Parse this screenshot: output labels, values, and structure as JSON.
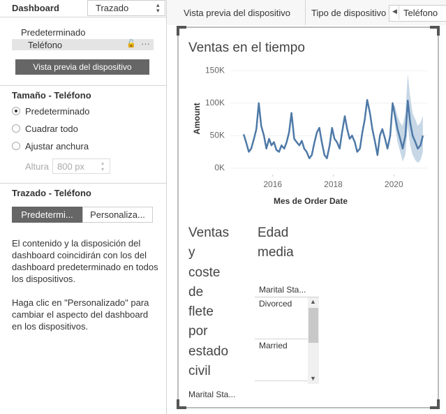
{
  "sidebar": {
    "tabs": [
      "Dashboard",
      "Trazado"
    ],
    "device_list": [
      "Predeterminado",
      "Teléfono"
    ],
    "preview_button": "Vista previa del dispositivo",
    "size": {
      "title": "Tamaño - Teléfono",
      "options": [
        "Predeterminado",
        "Cuadrar todo",
        "Ajustar anchura"
      ],
      "height_label": "Altura",
      "height_value": "800 px"
    },
    "layout": {
      "title": "Trazado - Teléfono",
      "buttons": [
        "Predetermi...",
        "Personaliza..."
      ],
      "paragraphs": [
        "El contenido y la disposición del dashboard coincidirán con los del dashboard predeterminado en todos los dispositivos.",
        "Haga clic en \"Personalizado\" para cambiar el aspecto del dashboard en los dispositivos."
      ]
    }
  },
  "toolbar": {
    "preview_tab": "Vista previa del dispositivo",
    "device_type_label": "Tipo de dispositivo",
    "device_type_value": "Teléfono"
  },
  "dashboard": {
    "chart_data": {
      "type": "line",
      "title": "Ventas en el tiempo",
      "y_label": "Amount",
      "x_label": "Mes de Order Date",
      "x": [
        2015.04,
        2015.12,
        2015.21,
        2015.29,
        2015.38,
        2015.46,
        2015.54,
        2015.62,
        2015.71,
        2015.79,
        2015.88,
        2015.96,
        2016.04,
        2016.12,
        2016.21,
        2016.29,
        2016.38,
        2016.46,
        2016.54,
        2016.62,
        2016.71,
        2016.79,
        2016.88,
        2016.96,
        2017.04,
        2017.12,
        2017.21,
        2017.29,
        2017.38,
        2017.46,
        2017.54,
        2017.62,
        2017.71,
        2017.79,
        2017.88,
        2017.96,
        2018.04,
        2018.12,
        2018.21,
        2018.29,
        2018.38,
        2018.46,
        2018.54,
        2018.62,
        2018.71,
        2018.79,
        2018.88,
        2018.96,
        2019.04,
        2019.12,
        2019.21,
        2019.29,
        2019.38,
        2019.46,
        2019.54,
        2019.62,
        2019.71,
        2019.79,
        2019.88,
        2019.96,
        2020.04,
        2020.12,
        2020.21,
        2020.29,
        2020.38,
        2020.46,
        2020.54,
        2020.62,
        2020.71,
        2020.79,
        2020.88,
        2020.96
      ],
      "series": [
        {
          "color": "#4e79a7",
          "values": [
            52000,
            40000,
            25000,
            30000,
            45000,
            60000,
            100000,
            65000,
            50000,
            30000,
            45000,
            35000,
            40000,
            28000,
            25000,
            35000,
            30000,
            40000,
            55000,
            85000,
            45000,
            40000,
            35000,
            42000,
            30000,
            25000,
            15000,
            20000,
            40000,
            55000,
            62000,
            40000,
            20000,
            15000,
            35000,
            62000,
            45000,
            40000,
            30000,
            55000,
            80000,
            60000,
            45000,
            50000,
            40000,
            25000,
            30000,
            55000,
            75000,
            105000,
            85000,
            60000,
            40000,
            20000,
            50000,
            60000,
            45000,
            30000,
            50000,
            100000,
            80000,
            60000,
            45000,
            30000,
            50000,
            104000,
            70000,
            50000,
            40000,
            30000,
            35000,
            50000
          ]
        }
      ],
      "band": {
        "color": "#b9cde0",
        "x": [
          2019.96,
          2020.04,
          2020.12,
          2020.21,
          2020.29,
          2020.38,
          2020.46,
          2020.54,
          2020.62,
          2020.71,
          2020.79,
          2020.88,
          2020.96
        ],
        "upper": [
          100000,
          95000,
          80000,
          70000,
          65000,
          85000,
          145000,
          110000,
          85000,
          75000,
          65000,
          70000,
          80000
        ],
        "lower": [
          100000,
          65000,
          40000,
          25000,
          10000,
          20000,
          65000,
          35000,
          20000,
          12000,
          8000,
          12000,
          25000
        ]
      },
      "xlim": [
        2014.6,
        2021.1
      ],
      "xticks": [
        2016,
        2018,
        2020
      ],
      "ylim": [
        -10000,
        160000
      ],
      "yticks": [
        {
          "value": 0,
          "label": "0K"
        },
        {
          "value": 50000,
          "label": "50K"
        },
        {
          "value": 100000,
          "label": "100K"
        },
        {
          "value": 150000,
          "label": "150K"
        }
      ],
      "grid": true
    },
    "title2_lines": [
      "Ventas",
      "y",
      "coste",
      "de",
      "flete",
      "por",
      "estado",
      "civil"
    ],
    "title3_lines": [
      "Edad",
      "media"
    ],
    "filter": {
      "header": "Marital Sta...",
      "items": [
        "Divorced",
        "Married"
      ]
    },
    "bottom_label": "Marital Sta..."
  }
}
